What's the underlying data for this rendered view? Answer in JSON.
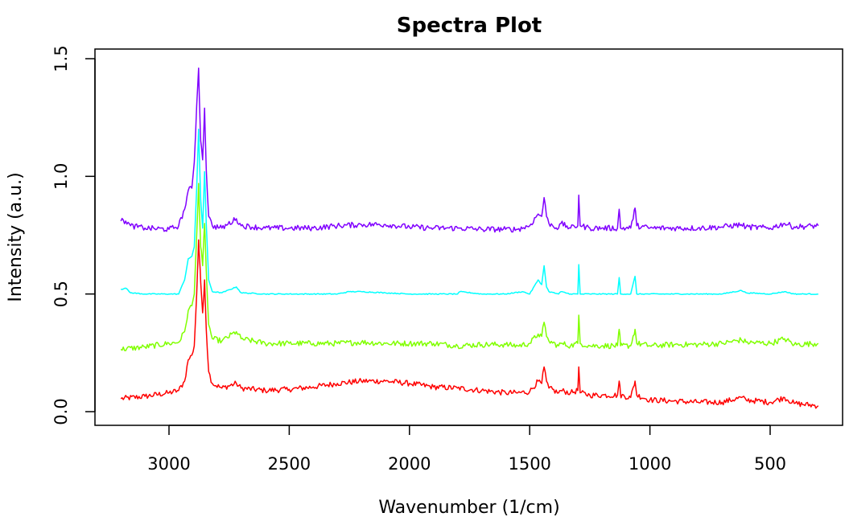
{
  "chart_data": {
    "type": "line",
    "title": "Spectra Plot",
    "xlabel": "Wavenumber (1/cm)",
    "ylabel": "Intensity (a.u.)",
    "xlim": [
      3200,
      300
    ],
    "ylim": [
      -0.05,
      1.5
    ],
    "x_reversed": true,
    "xticks": [
      3000,
      2500,
      2000,
      1500,
      1000,
      500
    ],
    "xtick_labels": [
      "3000",
      "2500",
      "2000",
      "1500",
      "1000",
      "500"
    ],
    "yticks": [
      0.0,
      0.5,
      1.0,
      1.5
    ],
    "ytick_labels": [
      "0.0",
      "0.5",
      "1.0",
      "1.5"
    ],
    "grid": false,
    "legend": "none",
    "series": [
      {
        "color": "#ff0000",
        "points": [
          [
            3200,
            0.055
          ],
          [
            3100,
            0.065
          ],
          [
            3000,
            0.08
          ],
          [
            2960,
            0.09
          ],
          [
            2935,
            0.13
          ],
          [
            2920,
            0.22
          ],
          [
            2905,
            0.24
          ],
          [
            2895,
            0.28
          ],
          [
            2885,
            0.5
          ],
          [
            2877,
            0.73
          ],
          [
            2868,
            0.55
          ],
          [
            2860,
            0.42
          ],
          [
            2852,
            0.56
          ],
          [
            2845,
            0.35
          ],
          [
            2835,
            0.17
          ],
          [
            2820,
            0.12
          ],
          [
            2780,
            0.1
          ],
          [
            2720,
            0.12
          ],
          [
            2700,
            0.1
          ],
          [
            2600,
            0.09
          ],
          [
            2500,
            0.095
          ],
          [
            2400,
            0.105
          ],
          [
            2300,
            0.12
          ],
          [
            2200,
            0.13
          ],
          [
            2100,
            0.13
          ],
          [
            2000,
            0.12
          ],
          [
            1900,
            0.105
          ],
          [
            1800,
            0.1
          ],
          [
            1700,
            0.09
          ],
          [
            1600,
            0.08
          ],
          [
            1550,
            0.08
          ],
          [
            1500,
            0.085
          ],
          [
            1465,
            0.13
          ],
          [
            1450,
            0.12
          ],
          [
            1440,
            0.19
          ],
          [
            1430,
            0.13
          ],
          [
            1420,
            0.1
          ],
          [
            1380,
            0.08
          ],
          [
            1370,
            0.09
          ],
          [
            1330,
            0.08
          ],
          [
            1300,
            0.09
          ],
          [
            1296,
            0.19
          ],
          [
            1290,
            0.08
          ],
          [
            1250,
            0.07
          ],
          [
            1200,
            0.07
          ],
          [
            1135,
            0.07
          ],
          [
            1128,
            0.13
          ],
          [
            1122,
            0.07
          ],
          [
            1080,
            0.06
          ],
          [
            1062,
            0.13
          ],
          [
            1055,
            0.07
          ],
          [
            1000,
            0.05
          ],
          [
            900,
            0.045
          ],
          [
            800,
            0.04
          ],
          [
            700,
            0.04
          ],
          [
            620,
            0.06
          ],
          [
            600,
            0.05
          ],
          [
            500,
            0.04
          ],
          [
            440,
            0.06
          ],
          [
            400,
            0.035
          ],
          [
            300,
            0.025
          ]
        ]
      },
      {
        "color": "#80ff00",
        "points": [
          [
            3200,
            0.265
          ],
          [
            3100,
            0.275
          ],
          [
            3000,
            0.29
          ],
          [
            2960,
            0.295
          ],
          [
            2935,
            0.34
          ],
          [
            2920,
            0.43
          ],
          [
            2905,
            0.45
          ],
          [
            2895,
            0.5
          ],
          [
            2885,
            0.75
          ],
          [
            2877,
            0.97
          ],
          [
            2868,
            0.7
          ],
          [
            2860,
            0.62
          ],
          [
            2852,
            0.8
          ],
          [
            2845,
            0.6
          ],
          [
            2835,
            0.37
          ],
          [
            2820,
            0.31
          ],
          [
            2780,
            0.3
          ],
          [
            2720,
            0.34
          ],
          [
            2700,
            0.31
          ],
          [
            2600,
            0.29
          ],
          [
            2500,
            0.29
          ],
          [
            2400,
            0.29
          ],
          [
            2300,
            0.29
          ],
          [
            2200,
            0.295
          ],
          [
            2100,
            0.29
          ],
          [
            2000,
            0.29
          ],
          [
            1900,
            0.29
          ],
          [
            1800,
            0.28
          ],
          [
            1700,
            0.285
          ],
          [
            1600,
            0.285
          ],
          [
            1550,
            0.28
          ],
          [
            1500,
            0.29
          ],
          [
            1465,
            0.33
          ],
          [
            1450,
            0.32
          ],
          [
            1440,
            0.38
          ],
          [
            1430,
            0.32
          ],
          [
            1420,
            0.3
          ],
          [
            1380,
            0.28
          ],
          [
            1370,
            0.29
          ],
          [
            1330,
            0.28
          ],
          [
            1300,
            0.29
          ],
          [
            1296,
            0.41
          ],
          [
            1290,
            0.29
          ],
          [
            1250,
            0.28
          ],
          [
            1200,
            0.28
          ],
          [
            1135,
            0.28
          ],
          [
            1128,
            0.35
          ],
          [
            1122,
            0.28
          ],
          [
            1080,
            0.28
          ],
          [
            1062,
            0.35
          ],
          [
            1055,
            0.29
          ],
          [
            1000,
            0.28
          ],
          [
            900,
            0.285
          ],
          [
            800,
            0.285
          ],
          [
            700,
            0.29
          ],
          [
            620,
            0.305
          ],
          [
            600,
            0.295
          ],
          [
            500,
            0.29
          ],
          [
            440,
            0.31
          ],
          [
            400,
            0.285
          ],
          [
            300,
            0.29
          ]
        ]
      },
      {
        "color": "#00ffff",
        "points": [
          [
            3200,
            0.52
          ],
          [
            3180,
            0.525
          ],
          [
            3160,
            0.505
          ],
          [
            3100,
            0.5
          ],
          [
            3000,
            0.5
          ],
          [
            2960,
            0.5
          ],
          [
            2935,
            0.56
          ],
          [
            2920,
            0.65
          ],
          [
            2905,
            0.66
          ],
          [
            2895,
            0.7
          ],
          [
            2885,
            0.95
          ],
          [
            2877,
            1.2
          ],
          [
            2868,
            0.9
          ],
          [
            2860,
            0.78
          ],
          [
            2852,
            1.02
          ],
          [
            2845,
            0.8
          ],
          [
            2835,
            0.56
          ],
          [
            2820,
            0.51
          ],
          [
            2780,
            0.505
          ],
          [
            2720,
            0.53
          ],
          [
            2700,
            0.505
          ],
          [
            2600,
            0.5
          ],
          [
            2500,
            0.5
          ],
          [
            2400,
            0.5
          ],
          [
            2300,
            0.5
          ],
          [
            2250,
            0.51
          ],
          [
            2200,
            0.51
          ],
          [
            2100,
            0.505
          ],
          [
            2000,
            0.5
          ],
          [
            1900,
            0.5
          ],
          [
            1800,
            0.5
          ],
          [
            1790,
            0.51
          ],
          [
            1700,
            0.5
          ],
          [
            1600,
            0.5
          ],
          [
            1530,
            0.51
          ],
          [
            1500,
            0.5
          ],
          [
            1465,
            0.56
          ],
          [
            1450,
            0.54
          ],
          [
            1440,
            0.62
          ],
          [
            1430,
            0.53
          ],
          [
            1420,
            0.51
          ],
          [
            1380,
            0.5
          ],
          [
            1370,
            0.51
          ],
          [
            1330,
            0.5
          ],
          [
            1300,
            0.5
          ],
          [
            1296,
            0.625
          ],
          [
            1290,
            0.5
          ],
          [
            1250,
            0.5
          ],
          [
            1200,
            0.5
          ],
          [
            1135,
            0.5
          ],
          [
            1128,
            0.57
          ],
          [
            1122,
            0.5
          ],
          [
            1080,
            0.5
          ],
          [
            1062,
            0.575
          ],
          [
            1055,
            0.5
          ],
          [
            1000,
            0.5
          ],
          [
            900,
            0.5
          ],
          [
            800,
            0.5
          ],
          [
            700,
            0.5
          ],
          [
            620,
            0.515
          ],
          [
            600,
            0.505
          ],
          [
            500,
            0.5
          ],
          [
            440,
            0.51
          ],
          [
            400,
            0.5
          ],
          [
            300,
            0.5
          ]
        ]
      },
      {
        "color": "#8000ff",
        "points": [
          [
            3200,
            0.81
          ],
          [
            3180,
            0.81
          ],
          [
            3160,
            0.79
          ],
          [
            3100,
            0.78
          ],
          [
            3000,
            0.775
          ],
          [
            2960,
            0.79
          ],
          [
            2935,
            0.86
          ],
          [
            2920,
            0.94
          ],
          [
            2905,
            0.95
          ],
          [
            2895,
            1.06
          ],
          [
            2885,
            1.3
          ],
          [
            2877,
            1.46
          ],
          [
            2868,
            1.15
          ],
          [
            2860,
            1.07
          ],
          [
            2852,
            1.29
          ],
          [
            2845,
            1.03
          ],
          [
            2835,
            0.83
          ],
          [
            2820,
            0.79
          ],
          [
            2780,
            0.78
          ],
          [
            2720,
            0.82
          ],
          [
            2700,
            0.79
          ],
          [
            2600,
            0.78
          ],
          [
            2500,
            0.78
          ],
          [
            2400,
            0.78
          ],
          [
            2300,
            0.79
          ],
          [
            2200,
            0.795
          ],
          [
            2100,
            0.795
          ],
          [
            2000,
            0.785
          ],
          [
            1900,
            0.78
          ],
          [
            1800,
            0.78
          ],
          [
            1700,
            0.775
          ],
          [
            1600,
            0.775
          ],
          [
            1550,
            0.775
          ],
          [
            1500,
            0.79
          ],
          [
            1465,
            0.84
          ],
          [
            1450,
            0.83
          ],
          [
            1440,
            0.91
          ],
          [
            1430,
            0.83
          ],
          [
            1420,
            0.8
          ],
          [
            1380,
            0.78
          ],
          [
            1370,
            0.8
          ],
          [
            1330,
            0.78
          ],
          [
            1300,
            0.79
          ],
          [
            1296,
            0.92
          ],
          [
            1290,
            0.79
          ],
          [
            1250,
            0.78
          ],
          [
            1200,
            0.78
          ],
          [
            1135,
            0.78
          ],
          [
            1128,
            0.86
          ],
          [
            1122,
            0.78
          ],
          [
            1080,
            0.78
          ],
          [
            1062,
            0.865
          ],
          [
            1055,
            0.79
          ],
          [
            1000,
            0.78
          ],
          [
            900,
            0.78
          ],
          [
            800,
            0.78
          ],
          [
            700,
            0.785
          ],
          [
            620,
            0.795
          ],
          [
            600,
            0.785
          ],
          [
            500,
            0.78
          ],
          [
            440,
            0.8
          ],
          [
            400,
            0.785
          ],
          [
            300,
            0.79
          ]
        ]
      }
    ]
  }
}
